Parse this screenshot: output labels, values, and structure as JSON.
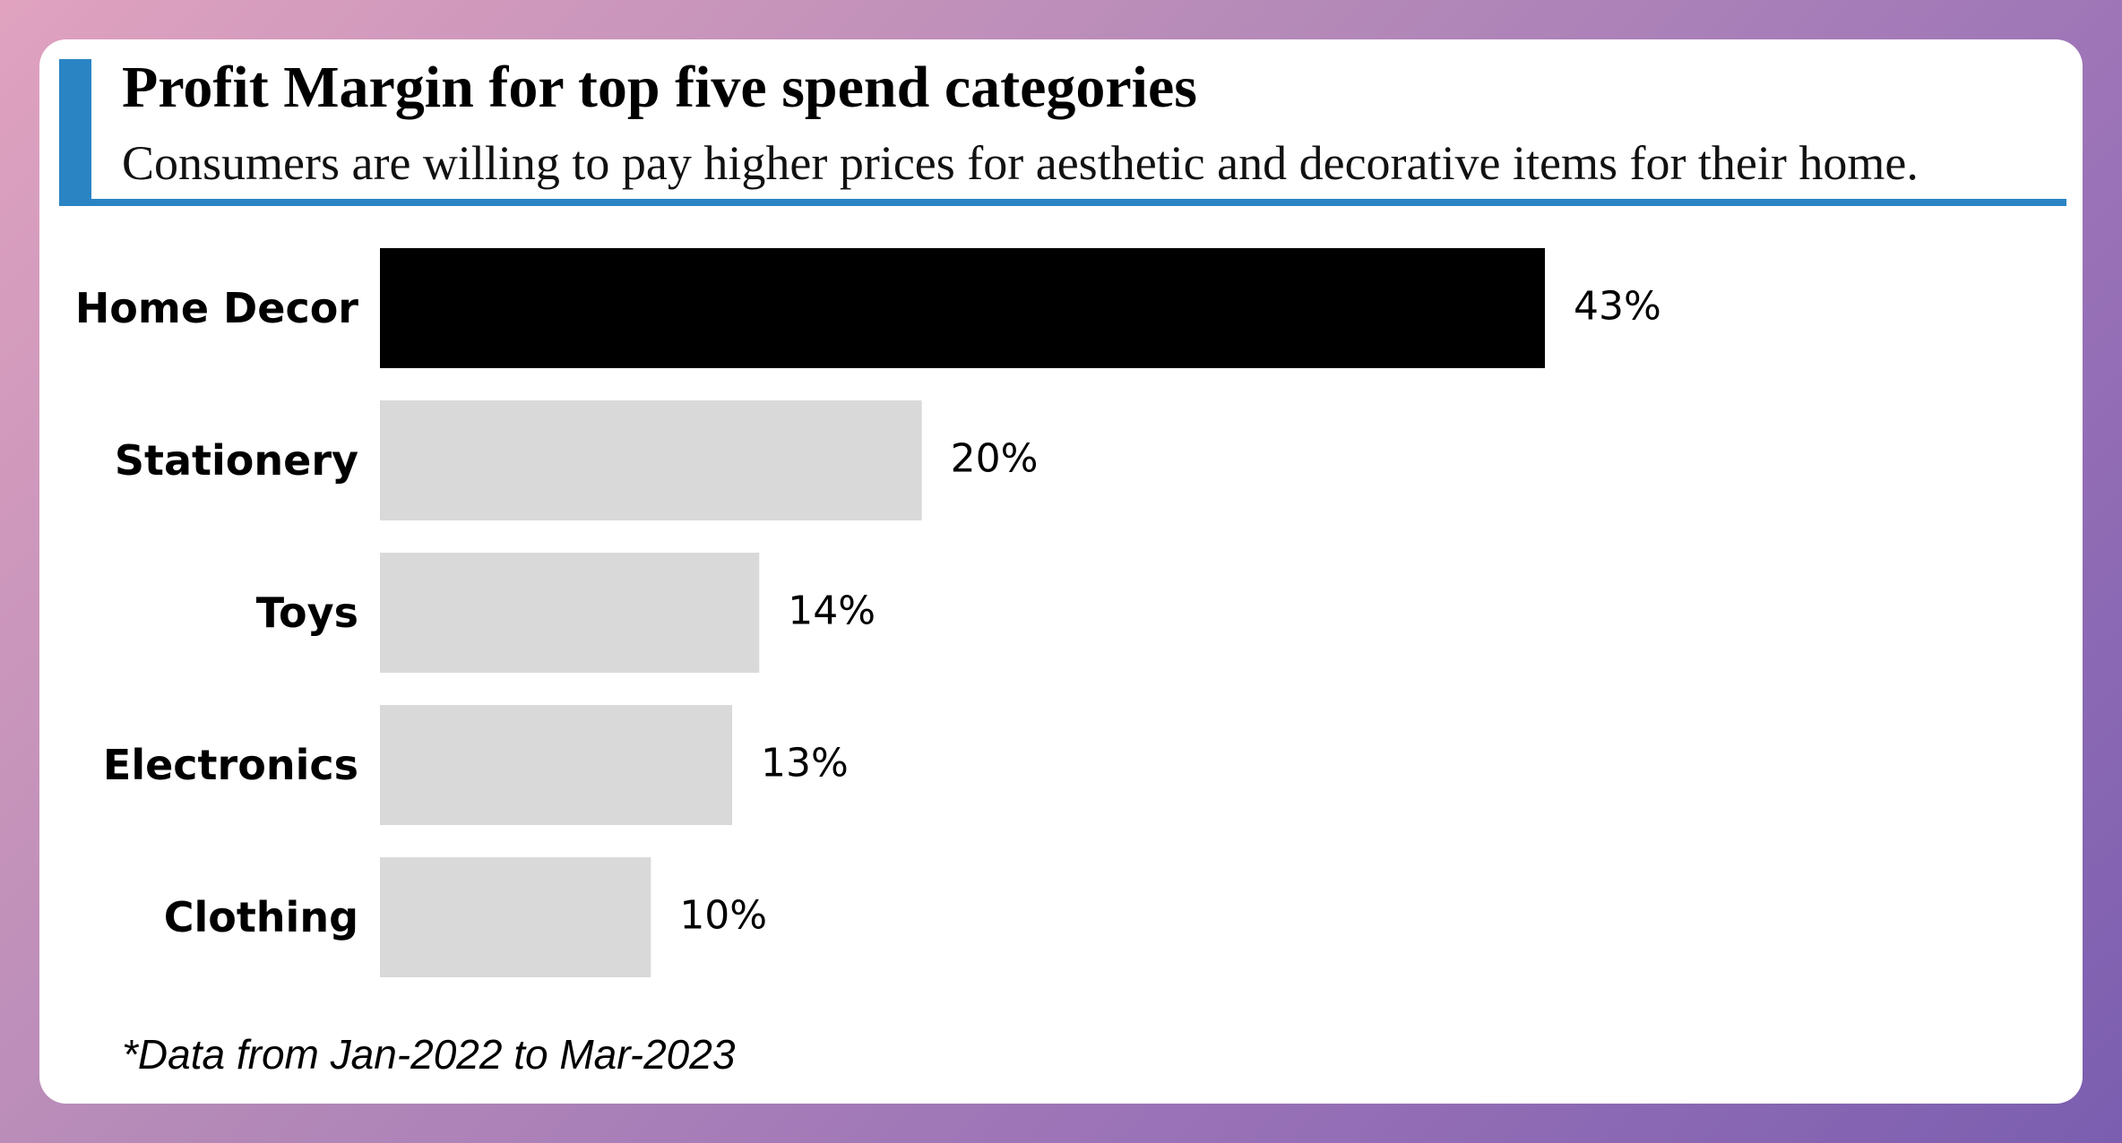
{
  "title": "Profit Margin for top five spend categories",
  "subtitle": "Consumers are willing to pay higher prices for aesthetic and decorative items for their home.",
  "footnote": "*Data from Jan-2022 to Mar-2023",
  "colors": {
    "accent": "#2a84c4",
    "highlight_bar": "#000000",
    "default_bar": "#d9d9d9",
    "text": "#000000"
  },
  "chart_data": {
    "type": "bar",
    "orientation": "horizontal",
    "categories": [
      "Home Decor",
      "Stationery",
      "Toys",
      "Electronics",
      "Clothing"
    ],
    "values": [
      43,
      20,
      14,
      13,
      10
    ],
    "value_labels": [
      "43%",
      "20%",
      "14%",
      "13%",
      "10%"
    ],
    "highlight": "Home Decor",
    "unit": "%",
    "xlim": [
      0,
      43
    ],
    "title": "Profit Margin for top five spend categories",
    "xlabel": "",
    "ylabel": "",
    "grid": false,
    "legend": "none"
  }
}
